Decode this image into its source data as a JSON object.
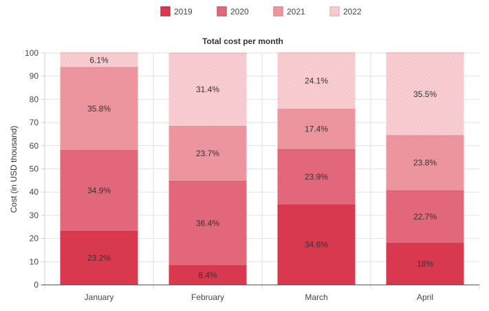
{
  "chart_data": {
    "type": "bar",
    "stacked": true,
    "title": "Total cost per month",
    "ylabel": "Cost (in USD thousand)",
    "xlabel": "",
    "ylim": [
      0,
      100
    ],
    "yticks": [
      0,
      10,
      20,
      30,
      40,
      50,
      60,
      70,
      80,
      90,
      100
    ],
    "grid": true,
    "legend_position": "top",
    "categories": [
      "January",
      "February",
      "March",
      "April"
    ],
    "series": [
      {
        "name": "2019",
        "values": [
          23.2,
          8.4,
          34.6,
          18
        ],
        "labels": [
          "23.2%",
          "8.4%",
          "34.6%",
          "18%"
        ],
        "color": "#d9394f",
        "border": "#c92a40",
        "pattern": false
      },
      {
        "name": "2020",
        "values": [
          34.9,
          36.4,
          23.9,
          22.7
        ],
        "labels": [
          "34.9%",
          "36.4%",
          "23.9%",
          "22.7%"
        ],
        "color": "#e2677a",
        "border": "#d95568",
        "pattern": false
      },
      {
        "name": "2021",
        "values": [
          35.8,
          23.7,
          17.4,
          23.8
        ],
        "labels": [
          "35.8%",
          "23.7%",
          "17.4%",
          "23.8%"
        ],
        "color": "#ec959f",
        "border": "#e28591",
        "pattern": false
      },
      {
        "name": "2022",
        "values": [
          6.1,
          31.4,
          24.1,
          35.5
        ],
        "labels": [
          "6.1%",
          "31.4%",
          "24.1%",
          "35.5%"
        ],
        "color": "#f6c6cb",
        "border": "#f1b3b9",
        "pattern": true
      }
    ]
  }
}
